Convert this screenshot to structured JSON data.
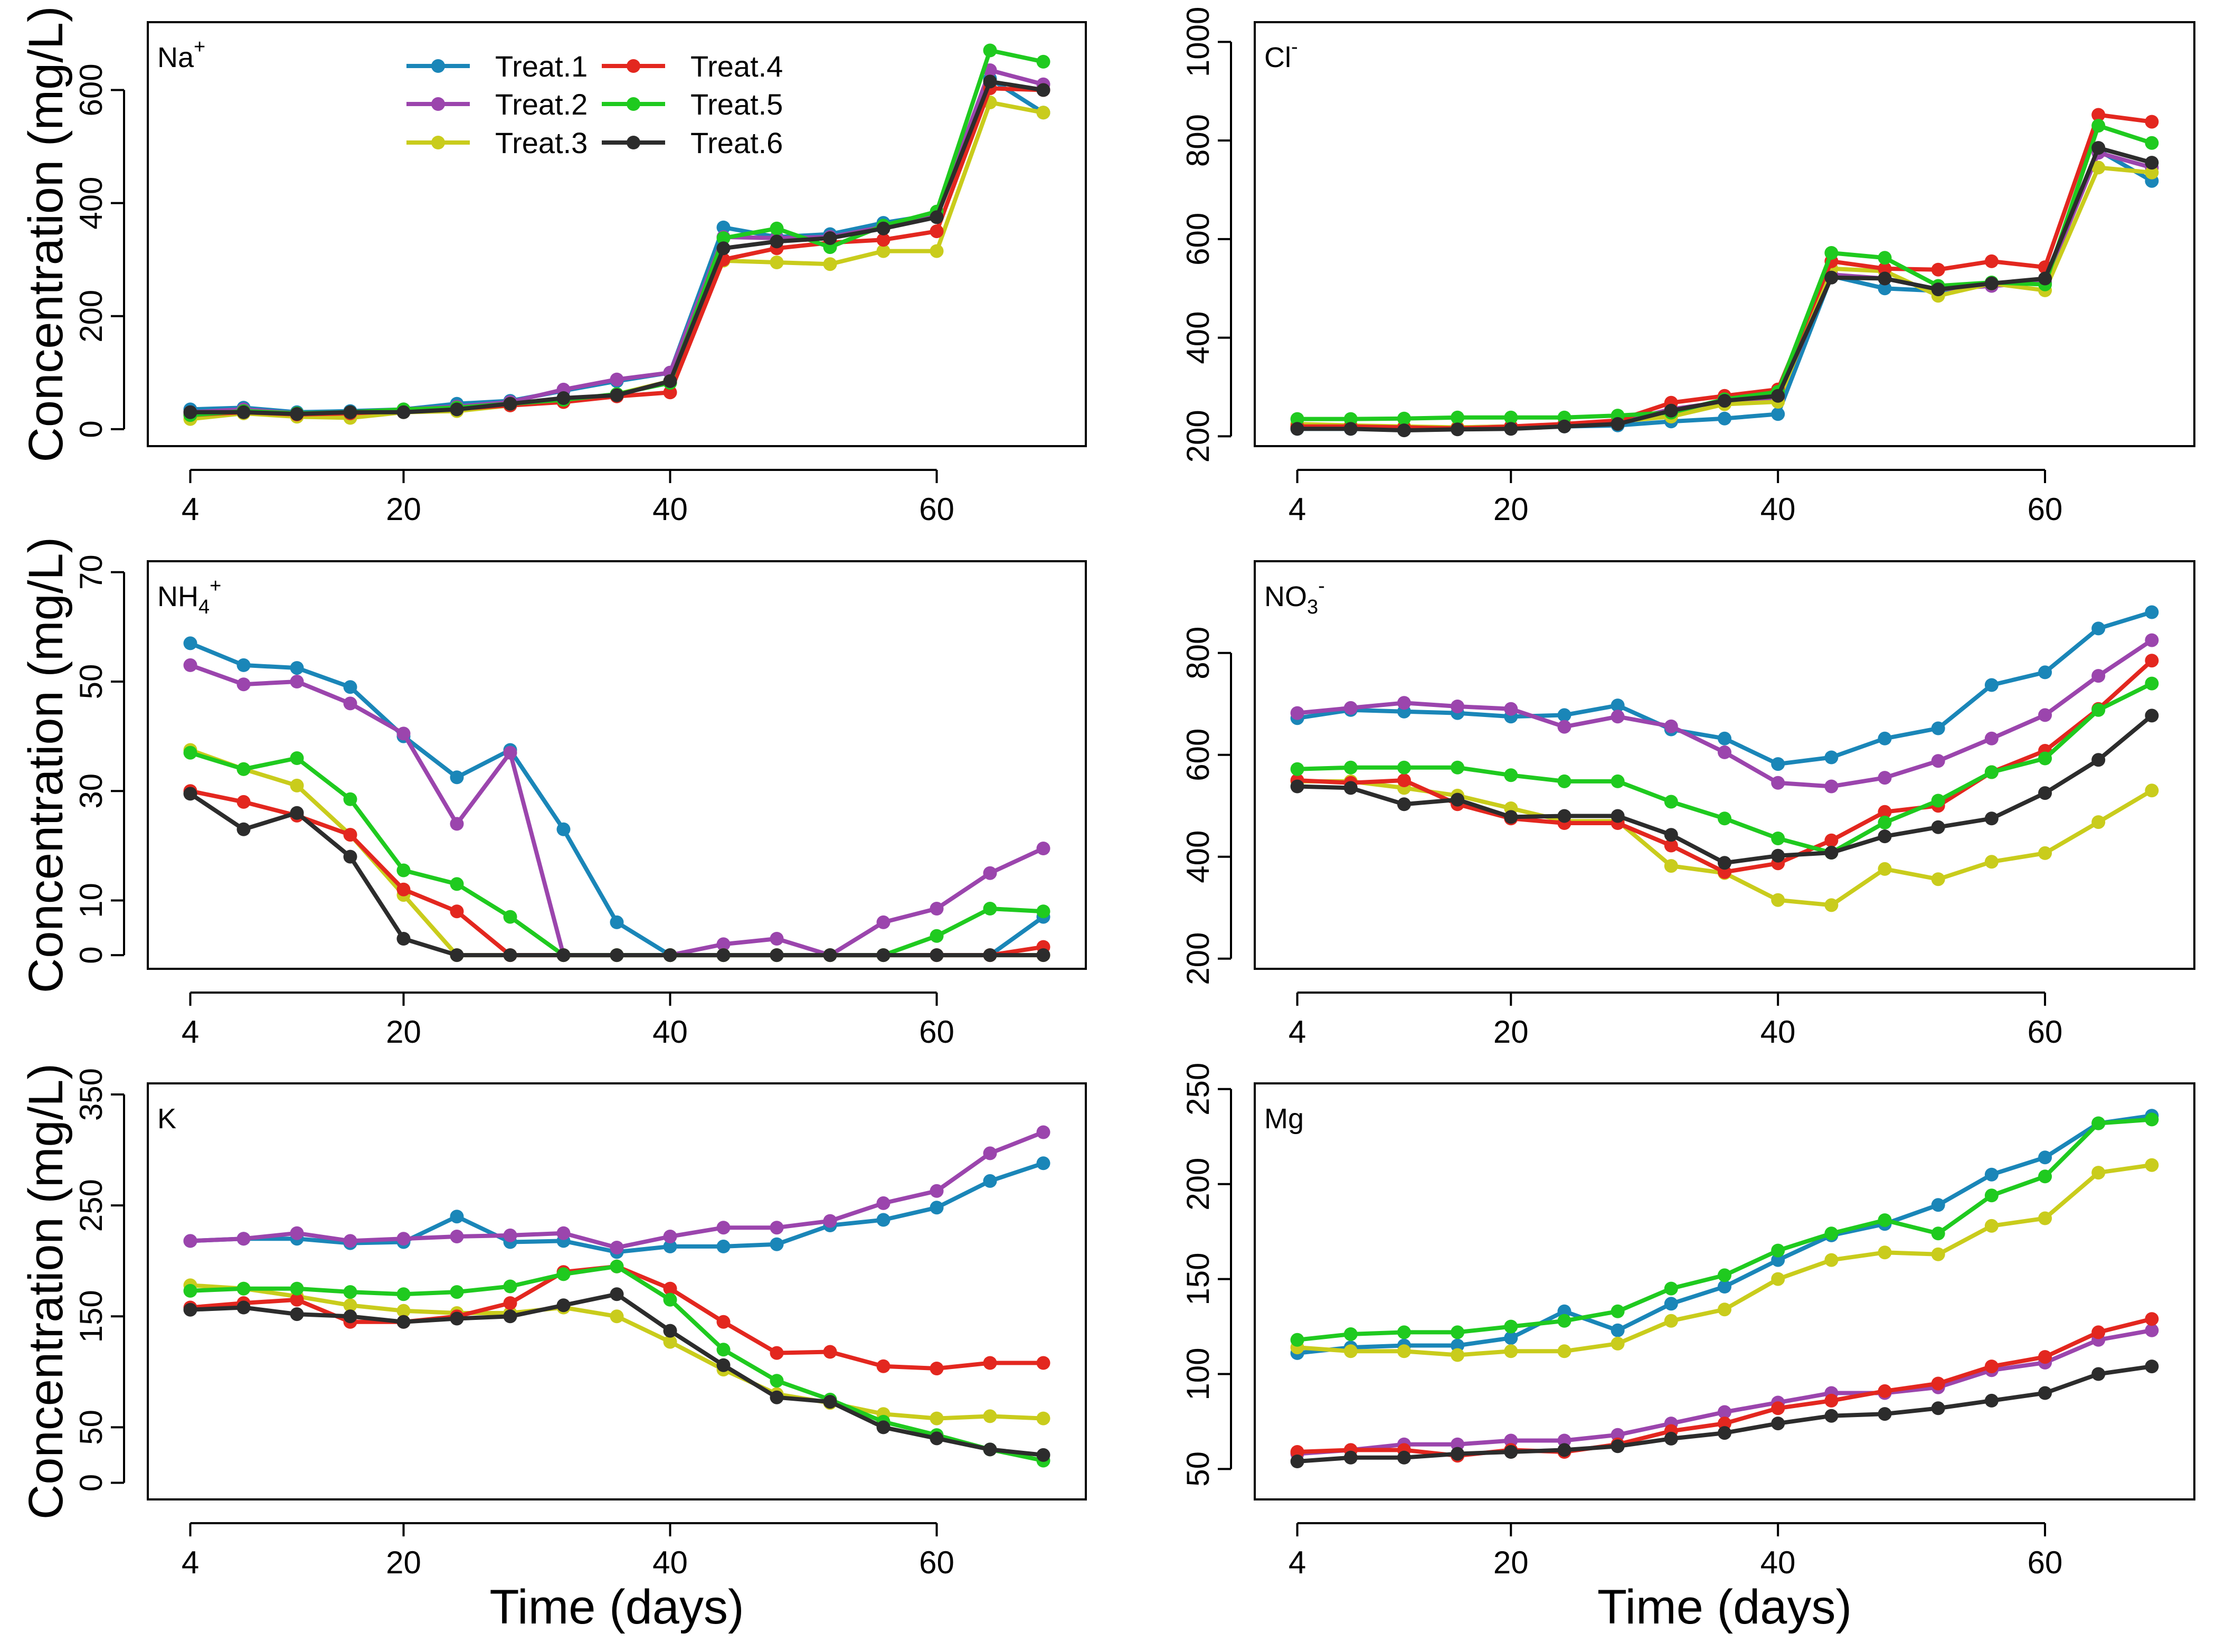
{
  "colors": {
    "Treat.1": "#1a86b8",
    "Treat.2": "#9b45ad",
    "Treat.3": "#c9cc1c",
    "Treat.4": "#e3271f",
    "Treat.5": "#1fca1f",
    "Treat.6": "#2c2c2c"
  },
  "legend": [
    "Treat.1",
    "Treat.2",
    "Treat.3",
    "Treat.4",
    "Treat.5",
    "Treat.6"
  ],
  "ylabel": "Concentration (mg/L)",
  "xlabel": "Time (days)",
  "chart_data": [
    {
      "type": "line",
      "title": "Na",
      "sup": "+",
      "sub": "",
      "x": [
        4,
        8,
        12,
        16,
        20,
        24,
        28,
        32,
        36,
        40,
        44,
        48,
        52,
        56,
        60,
        64,
        68
      ],
      "xticks": [
        4,
        20,
        40,
        60
      ],
      "xlim": [
        2,
        70
      ],
      "ylim": [
        -30,
        720
      ],
      "yticks": [
        0,
        200,
        400,
        600
      ],
      "series": [
        {
          "name": "Treat.1",
          "values": [
            35,
            38,
            30,
            32,
            35,
            45,
            50,
            68,
            85,
            100,
            357,
            340,
            345,
            365,
            380,
            620,
            560
          ]
        },
        {
          "name": "Treat.2",
          "values": [
            30,
            35,
            28,
            30,
            35,
            40,
            48,
            70,
            88,
            100,
            340,
            338,
            340,
            358,
            378,
            635,
            610
          ]
        },
        {
          "name": "Treat.3",
          "values": [
            18,
            28,
            22,
            20,
            30,
            32,
            42,
            50,
            62,
            85,
            298,
            295,
            292,
            315,
            315,
            578,
            560
          ]
        },
        {
          "name": "Treat.4",
          "values": [
            25,
            30,
            26,
            28,
            32,
            36,
            42,
            48,
            58,
            65,
            300,
            320,
            330,
            335,
            350,
            603,
            600
          ]
        },
        {
          "name": "Treat.5",
          "values": [
            25,
            32,
            28,
            30,
            35,
            38,
            45,
            52,
            62,
            82,
            338,
            355,
            322,
            360,
            385,
            670,
            650
          ]
        },
        {
          "name": "Treat.6",
          "values": [
            30,
            30,
            27,
            30,
            30,
            35,
            45,
            55,
            60,
            85,
            320,
            332,
            338,
            355,
            375,
            615,
            600
          ]
        }
      ]
    },
    {
      "type": "line",
      "title": "Cl",
      "sup": "-",
      "sub": "",
      "x": [
        4,
        8,
        12,
        16,
        20,
        24,
        28,
        32,
        36,
        40,
        44,
        48,
        52,
        56,
        60,
        64,
        68
      ],
      "xticks": [
        4,
        20,
        40,
        60
      ],
      "xlim": [
        2,
        70
      ],
      "ylim": [
        180,
        1040
      ],
      "yticks": [
        200,
        400,
        600,
        800,
        1000
      ],
      "series": [
        {
          "name": "Treat.1",
          "values": [
            215,
            215,
            215,
            215,
            218,
            220,
            222,
            230,
            236,
            245,
            525,
            500,
            495,
            508,
            510,
            780,
            718
          ]
        },
        {
          "name": "Treat.2",
          "values": [
            218,
            220,
            217,
            218,
            220,
            222,
            228,
            255,
            270,
            275,
            528,
            520,
            498,
            505,
            512,
            775,
            745
          ]
        },
        {
          "name": "Treat.3",
          "values": [
            225,
            222,
            220,
            218,
            220,
            222,
            230,
            240,
            265,
            270,
            540,
            535,
            485,
            510,
            496,
            745,
            735
          ]
        },
        {
          "name": "Treat.4",
          "values": [
            220,
            220,
            218,
            216,
            220,
            225,
            232,
            268,
            282,
            295,
            555,
            540,
            538,
            555,
            543,
            852,
            838
          ]
        },
        {
          "name": "Treat.5",
          "values": [
            235,
            235,
            236,
            238,
            238,
            238,
            242,
            248,
            275,
            290,
            572,
            562,
            505,
            512,
            508,
            830,
            795
          ]
        },
        {
          "name": "Treat.6",
          "values": [
            215,
            215,
            212,
            214,
            215,
            220,
            225,
            252,
            272,
            282,
            522,
            520,
            498,
            510,
            520,
            785,
            755
          ]
        }
      ]
    },
    {
      "type": "line",
      "title": "NH",
      "sup": "+",
      "sub": "4",
      "x": [
        4,
        8,
        12,
        16,
        20,
        24,
        28,
        32,
        36,
        40,
        44,
        48,
        52,
        56,
        60,
        64,
        68
      ],
      "xticks": [
        4,
        20,
        40,
        60
      ],
      "xlim": [
        2,
        70
      ],
      "ylim": [
        -2.5,
        72
      ],
      "yticks": [
        0,
        10,
        30,
        50,
        70
      ],
      "series": [
        {
          "name": "Treat.1",
          "values": [
            57,
            53,
            52.5,
            49,
            40,
            32.5,
            37.5,
            23,
            6,
            0,
            0,
            0,
            0,
            0,
            0,
            0,
            7
          ]
        },
        {
          "name": "Treat.2",
          "values": [
            53,
            49.5,
            50,
            46,
            40.5,
            24,
            37,
            0,
            0,
            0,
            2,
            3,
            0,
            6,
            8.5,
            15,
            19.5
          ]
        },
        {
          "name": "Treat.3",
          "values": [
            37.5,
            34,
            31,
            22,
            11,
            0,
            0,
            0,
            0,
            0,
            0,
            0,
            0,
            0,
            0,
            0,
            0
          ]
        },
        {
          "name": "Treat.4",
          "values": [
            30,
            28,
            25.5,
            22,
            12,
            8,
            0,
            0,
            0,
            0,
            0,
            0,
            0,
            0,
            0,
            0,
            1.5
          ]
        },
        {
          "name": "Treat.5",
          "values": [
            37,
            34,
            36,
            28.5,
            15.5,
            13,
            7,
            0,
            0,
            0,
            0,
            0,
            0,
            0,
            3.5,
            8.5,
            8
          ]
        },
        {
          "name": "Treat.6",
          "values": [
            29.5,
            23,
            26,
            18,
            3,
            0,
            0,
            0,
            0,
            0,
            0,
            0,
            0,
            0,
            0,
            0,
            0
          ]
        }
      ]
    },
    {
      "type": "line",
      "title": "NO",
      "sup": "-",
      "sub": "3",
      "x": [
        4,
        8,
        12,
        16,
        20,
        24,
        28,
        32,
        36,
        40,
        44,
        48,
        52,
        56,
        60,
        64,
        68
      ],
      "xticks": [
        4,
        20,
        40,
        60
      ],
      "xlim": [
        2,
        70
      ],
      "ylim": [
        180,
        980
      ],
      "yticks": [
        200,
        400,
        600,
        800
      ],
      "series": [
        {
          "name": "Treat.1",
          "values": [
            672,
            688,
            685,
            682,
            675,
            678,
            697,
            650,
            632,
            582,
            595,
            632,
            652,
            737,
            762,
            848,
            880
          ]
        },
        {
          "name": "Treat.2",
          "values": [
            682,
            692,
            702,
            695,
            690,
            655,
            675,
            656,
            605,
            545,
            538,
            555,
            588,
            632,
            678,
            755,
            825
          ]
        },
        {
          "name": "Treat.3",
          "values": [
            548,
            548,
            535,
            520,
            495,
            470,
            470,
            382,
            368,
            315,
            305,
            376,
            356,
            390,
            407,
            468,
            530
          ]
        },
        {
          "name": "Treat.4",
          "values": [
            550,
            545,
            550,
            503,
            475,
            466,
            466,
            422,
            370,
            387,
            432,
            488,
            500,
            566,
            608,
            690,
            785
          ]
        },
        {
          "name": "Treat.5",
          "values": [
            572,
            575,
            575,
            575,
            560,
            548,
            548,
            508,
            475,
            436,
            408,
            467,
            510,
            566,
            593,
            688,
            740
          ]
        },
        {
          "name": "Treat.6",
          "values": [
            538,
            535,
            503,
            512,
            478,
            480,
            480,
            443,
            388,
            402,
            408,
            440,
            458,
            475,
            525,
            590,
            677
          ]
        }
      ]
    },
    {
      "type": "line",
      "title": "K",
      "sup": "",
      "sub": "",
      "x": [
        4,
        8,
        12,
        16,
        20,
        24,
        28,
        32,
        36,
        40,
        44,
        48,
        52,
        56,
        60,
        64,
        68
      ],
      "xticks": [
        4,
        20,
        40,
        60
      ],
      "xlim": [
        2,
        70
      ],
      "ylim": [
        -15,
        360
      ],
      "yticks": [
        0,
        50,
        150,
        250,
        350
      ],
      "series": [
        {
          "name": "Treat.1",
          "values": [
            218,
            220,
            220,
            216,
            217,
            240,
            217,
            218,
            208,
            213,
            213,
            215,
            232,
            237,
            248,
            272,
            288
          ]
        },
        {
          "name": "Treat.2",
          "values": [
            218,
            220,
            225,
            218,
            220,
            222,
            223,
            225,
            212,
            222,
            230,
            230,
            236,
            252,
            263,
            297,
            316
          ]
        },
        {
          "name": "Treat.3",
          "values": [
            178,
            175,
            168,
            160,
            155,
            153,
            153,
            158,
            150,
            127,
            102,
            80,
            72,
            62,
            58,
            60,
            58
          ]
        },
        {
          "name": "Treat.4",
          "values": [
            158,
            162,
            165,
            145,
            145,
            150,
            162,
            190,
            195,
            175,
            145,
            117,
            118,
            105,
            103,
            108,
            108
          ]
        },
        {
          "name": "Treat.5",
          "values": [
            173,
            175,
            175,
            172,
            170,
            172,
            177,
            188,
            195,
            165,
            120,
            92,
            75,
            55,
            43,
            30,
            20
          ]
        },
        {
          "name": "Treat.6",
          "values": [
            156,
            158,
            152,
            150,
            145,
            148,
            150,
            160,
            170,
            137,
            106,
            77,
            73,
            50,
            40,
            30,
            25
          ]
        }
      ]
    },
    {
      "type": "line",
      "title": "Mg",
      "sup": "",
      "sub": "",
      "x": [
        4,
        8,
        12,
        16,
        20,
        24,
        28,
        32,
        36,
        40,
        44,
        48,
        52,
        56,
        60,
        64,
        68
      ],
      "xticks": [
        4,
        20,
        40,
        60
      ],
      "xlim": [
        2,
        70
      ],
      "ylim": [
        34,
        253
      ],
      "yticks": [
        50,
        100,
        150,
        200,
        250
      ],
      "series": [
        {
          "name": "Treat.1",
          "values": [
            111,
            114,
            115,
            115,
            119,
            133,
            123,
            137,
            146,
            160,
            173,
            179,
            189,
            205,
            214,
            232,
            236
          ]
        },
        {
          "name": "Treat.2",
          "values": [
            58,
            60,
            63,
            63,
            65,
            65,
            68,
            74,
            80,
            85,
            90,
            90,
            93,
            102,
            106,
            118,
            123
          ]
        },
        {
          "name": "Treat.3",
          "values": [
            114,
            112,
            112,
            110,
            112,
            112,
            116,
            128,
            134,
            150,
            160,
            164,
            163,
            178,
            182,
            206,
            210
          ]
        },
        {
          "name": "Treat.4",
          "values": [
            59,
            60,
            60,
            57,
            60,
            59,
            63,
            70,
            74,
            82,
            86,
            91,
            95,
            104,
            109,
            122,
            129
          ]
        },
        {
          "name": "Treat.5",
          "values": [
            118,
            121,
            122,
            122,
            125,
            128,
            133,
            145,
            152,
            165,
            174,
            181,
            174,
            194,
            204,
            232,
            234
          ]
        },
        {
          "name": "Treat.6",
          "values": [
            54,
            56,
            56,
            58,
            59,
            60,
            62,
            66,
            69,
            74,
            78,
            79,
            82,
            86,
            90,
            100,
            104
          ]
        }
      ]
    }
  ]
}
